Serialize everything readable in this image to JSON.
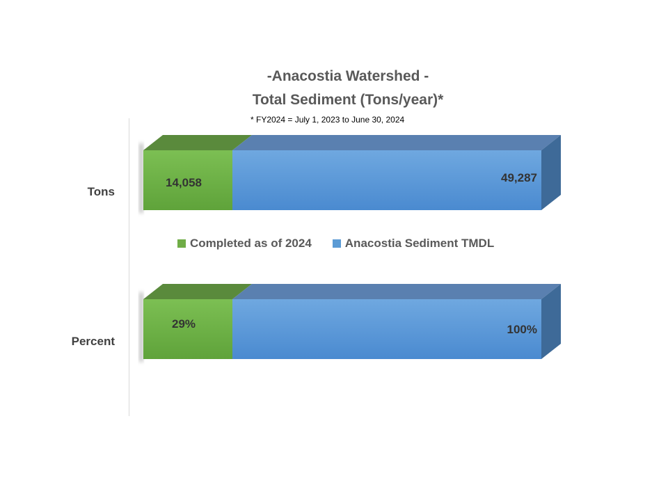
{
  "chart_data": {
    "type": "bar",
    "orientation": "horizontal",
    "stacked": true,
    "title_lines": [
      "-Anacostia Watershed -",
      "Total Sediment (Tons/year)*"
    ],
    "subtitle": "* FY2024 = July 1, 2023 to June 30, 2024",
    "categories": [
      "Tons",
      "Percent"
    ],
    "series": [
      {
        "name": "Completed as of 2024",
        "color": "#70ad47",
        "values": [
          14058,
          29
        ],
        "labels": [
          "14,058",
          "29%"
        ]
      },
      {
        "name": "Anacostia Sediment TMDL",
        "color": "#5b9bd5",
        "values": [
          49287,
          100
        ],
        "labels": [
          "49,287",
          "100%"
        ]
      }
    ],
    "legend_position": "middle",
    "grid": false
  }
}
